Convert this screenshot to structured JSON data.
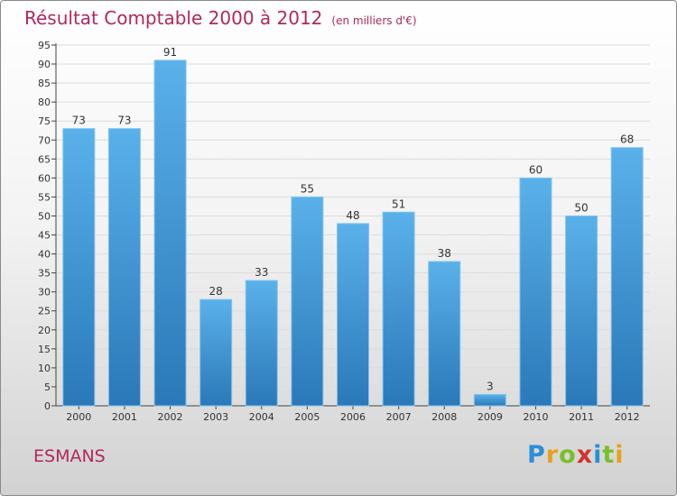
{
  "chart_data": {
    "type": "bar",
    "title": "Résultat Comptable 2000 à 2012",
    "subtitle": "(en milliers d'€)",
    "categories": [
      "2000",
      "2001",
      "2002",
      "2003",
      "2004",
      "2005",
      "2006",
      "2007",
      "2008",
      "2009",
      "2010",
      "2011",
      "2012"
    ],
    "values": [
      73,
      73,
      91,
      28,
      33,
      55,
      48,
      51,
      38,
      3,
      60,
      50,
      68
    ],
    "xlabel": "",
    "ylabel": "",
    "ylim": [
      0,
      95
    ],
    "yticks": [
      0,
      5,
      10,
      15,
      20,
      25,
      30,
      35,
      40,
      45,
      50,
      55,
      60,
      65,
      70,
      75,
      80,
      85,
      90,
      95
    ],
    "grid": true,
    "bar_color": "#3a8ccc",
    "bar_color_light": "#5ab1ea",
    "title_color": "#b0285c"
  },
  "place": "ESMANS",
  "logo": {
    "text": "Proxiti",
    "letters": [
      "P",
      "r",
      "o",
      "x",
      "i",
      "t",
      "i"
    ]
  }
}
